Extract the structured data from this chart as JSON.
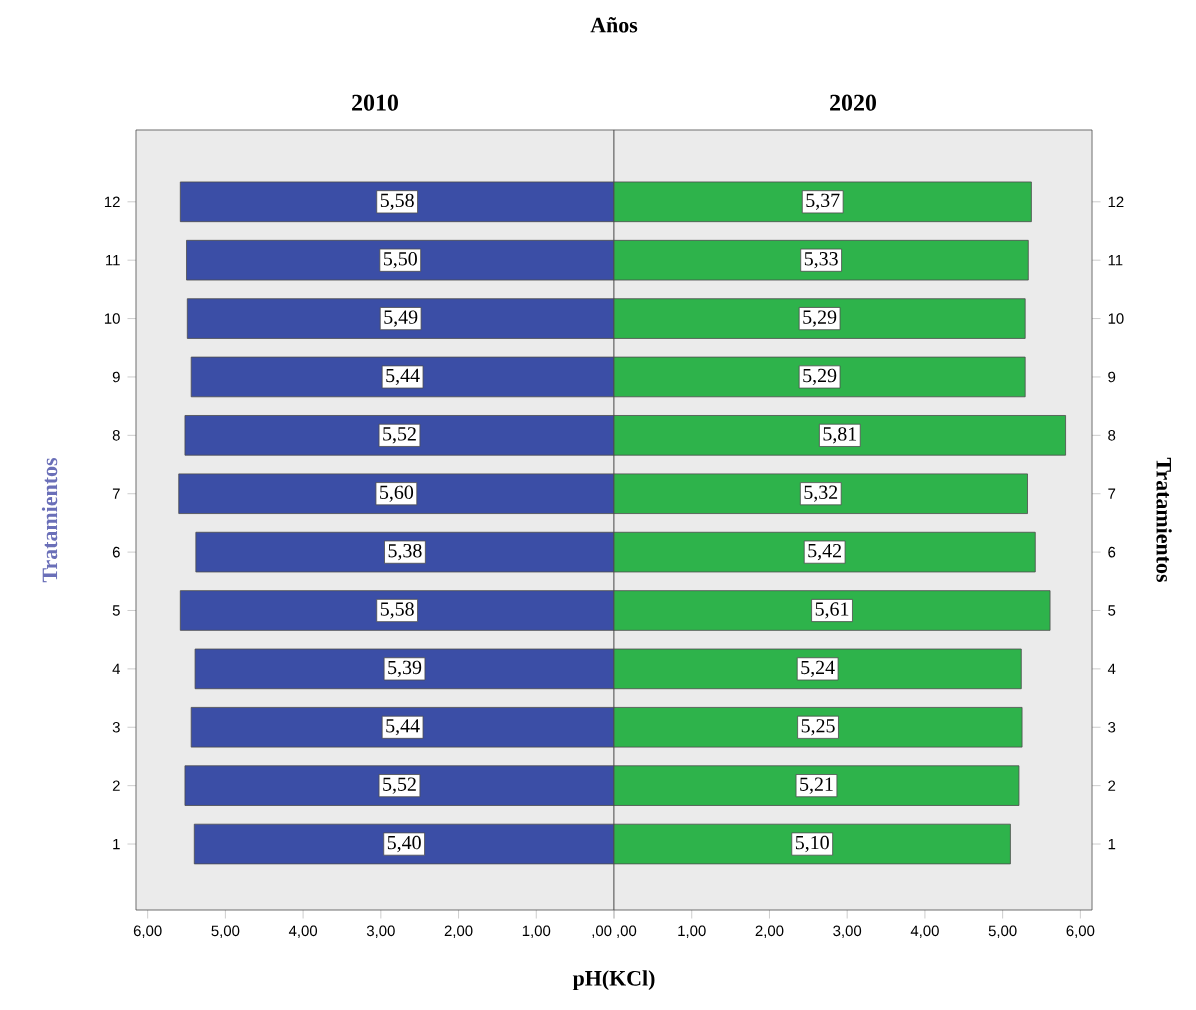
{
  "chart_data": [
    {
      "type": "bar",
      "orientation": "horizontal",
      "title": "Años",
      "subtitle": "2010",
      "ylabel": "Tratamientos",
      "categories": [
        "12",
        "11",
        "10",
        "9",
        "8",
        "7",
        "6",
        "5",
        "4",
        "3",
        "2",
        "1"
      ],
      "values": [
        5.58,
        5.5,
        5.49,
        5.44,
        5.52,
        5.6,
        5.38,
        5.58,
        5.39,
        5.44,
        5.52,
        5.4
      ],
      "value_labels": [
        "5,58",
        "5,50",
        "5,49",
        "5,44",
        "5,52",
        "5,60",
        "5,38",
        "5,58",
        "5,39",
        "5,44",
        "5,52",
        "5,40"
      ],
      "color": "#3b4ea6",
      "xlim": [
        6.15,
        0
      ],
      "xticks": [
        {
          "value": 6,
          "label": "6,00"
        },
        {
          "value": 5,
          "label": "5,00"
        },
        {
          "value": 4,
          "label": "4,00"
        },
        {
          "value": 3,
          "label": "3,00"
        },
        {
          "value": 2,
          "label": "2,00"
        },
        {
          "value": 1,
          "label": "1,00"
        },
        {
          "value": 0,
          "label": ",00"
        }
      ]
    },
    {
      "type": "bar",
      "orientation": "horizontal",
      "subtitle": "2020",
      "xlabel": "pH(KCl)",
      "ylabel": "Tratamientos",
      "categories": [
        "12",
        "11",
        "10",
        "9",
        "8",
        "7",
        "6",
        "5",
        "4",
        "3",
        "2",
        "1"
      ],
      "values": [
        5.37,
        5.33,
        5.29,
        5.29,
        5.81,
        5.32,
        5.42,
        5.61,
        5.24,
        5.25,
        5.21,
        5.1
      ],
      "value_labels": [
        "5,37",
        "5,33",
        "5,29",
        "5,29",
        "5,81",
        "5,32",
        "5,42",
        "5,61",
        "5,24",
        "5,25",
        "5,21",
        "5,10"
      ],
      "color": "#2eb34b",
      "xlim": [
        0,
        6.15
      ],
      "xticks": [
        {
          "value": 0,
          "label": ",00"
        },
        {
          "value": 1,
          "label": "1,00"
        },
        {
          "value": 2,
          "label": "2,00"
        },
        {
          "value": 3,
          "label": "3,00"
        },
        {
          "value": 4,
          "label": "4,00"
        },
        {
          "value": 5,
          "label": "5,00"
        },
        {
          "value": 6,
          "label": "6,00"
        }
      ]
    }
  ]
}
